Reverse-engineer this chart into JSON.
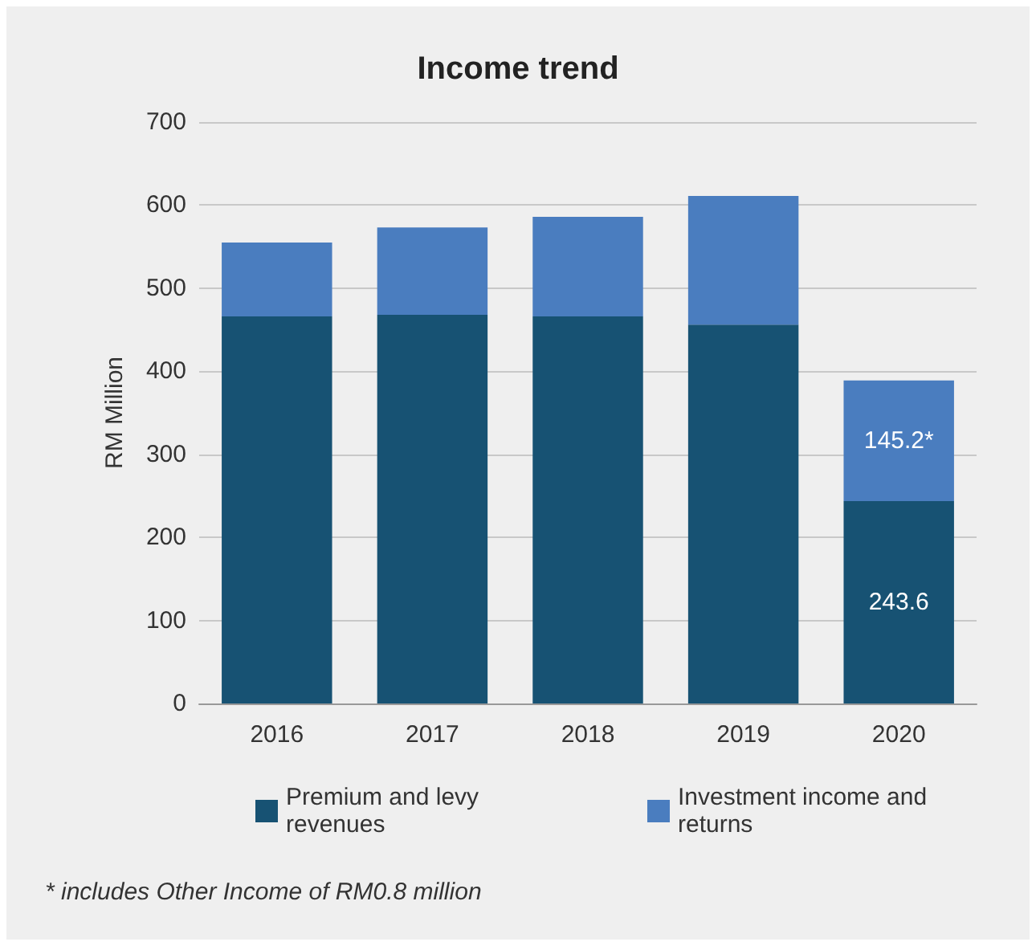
{
  "chart_data": {
    "type": "bar",
    "title": "Income trend",
    "ylabel": "RM Million",
    "categories": [
      "2016",
      "2017",
      "2018",
      "2019",
      "2020"
    ],
    "stacked": true,
    "series": [
      {
        "name": "Premium and levy revenues",
        "color": "#175273",
        "values": [
          466,
          468,
          466,
          456,
          243.6
        ],
        "value_labels": [
          null,
          null,
          null,
          null,
          "243.6"
        ]
      },
      {
        "name": "Investment income and returns",
        "color": "#4a7dbf",
        "values": [
          89,
          105,
          120,
          155,
          145.2
        ],
        "value_labels": [
          null,
          null,
          null,
          null,
          "145.2*"
        ]
      }
    ],
    "ylim": [
      0,
      700
    ],
    "yticks": [
      0,
      100,
      200,
      300,
      400,
      500,
      600,
      700
    ],
    "grid": "y",
    "legend": "bottom",
    "annotations": [
      "* includes Other Income of RM0.8 million"
    ]
  }
}
